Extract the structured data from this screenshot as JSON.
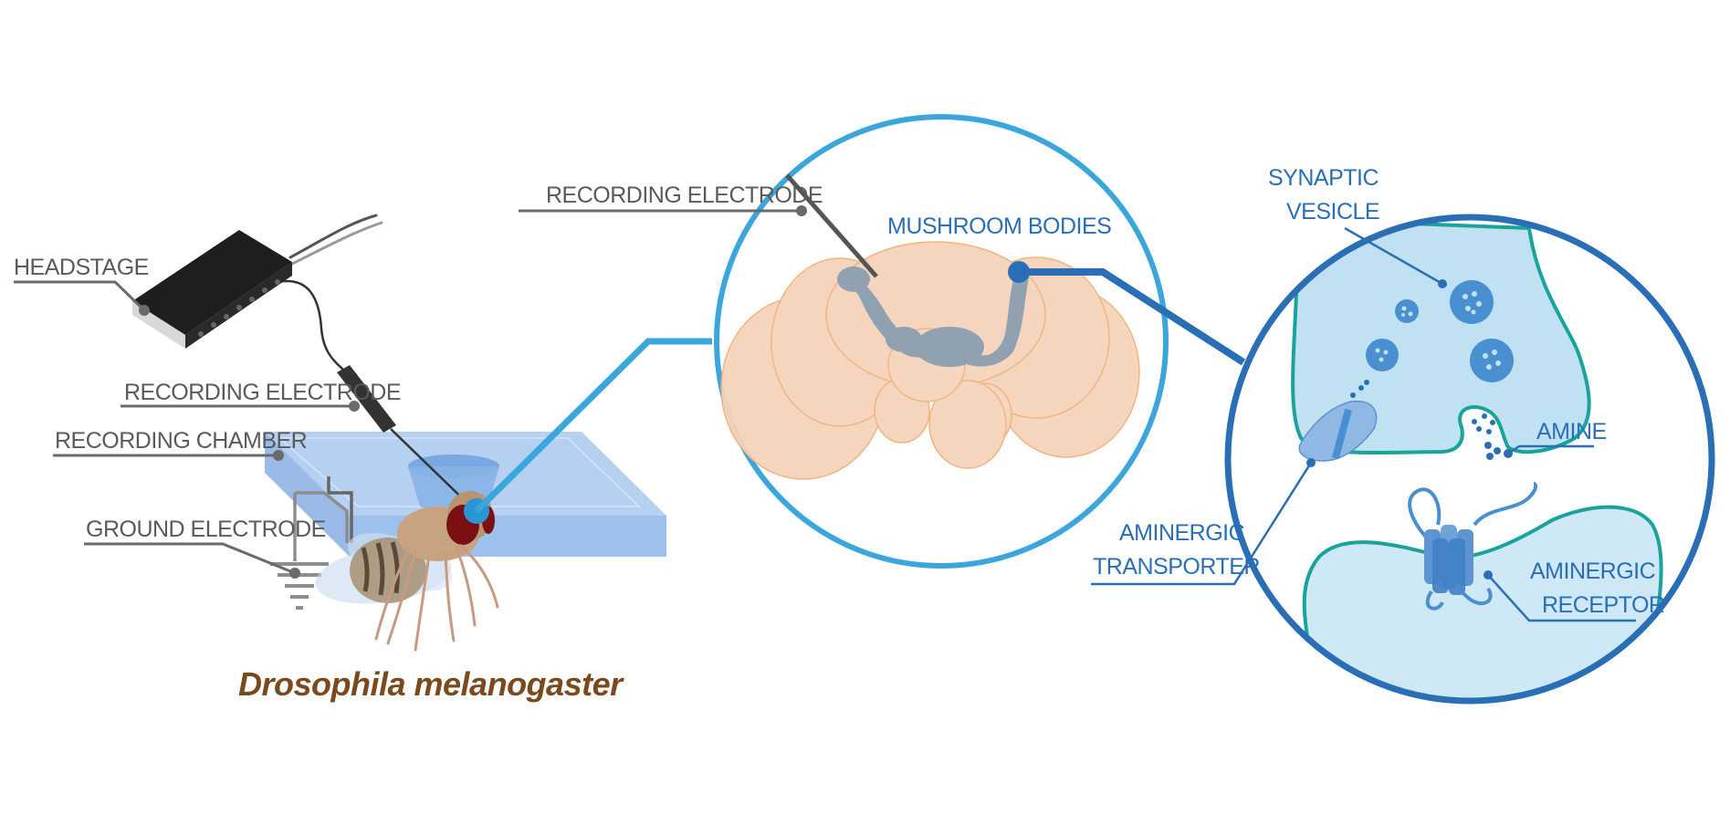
{
  "labels": {
    "headstage": "HEADSTAGE",
    "recording_electrode_left": "RECORDING ELECTRODE",
    "recording_chamber": "RECORDING CHAMBER",
    "ground_electrode": "GROUND ELECTRODE",
    "species": "Drosophila melanogaster",
    "recording_electrode_brain": "RECORDING ELECTRODE",
    "mushroom_bodies": "MUSHROOM BODIES",
    "synaptic_vesicle_line1": "SYNAPTIC",
    "synaptic_vesicle_line2": "VESICLE",
    "amine": "AMINE",
    "aminergic_transporter_line1": "AMINERGIC",
    "aminergic_transporter_line2": "TRANSPORTER",
    "aminergic_receptor_line1": "AMINERGIC",
    "aminergic_receptor_line2": "RECEPTOR"
  },
  "colors": {
    "gray_label": "#5a5a5a",
    "blue_label": "#2a6fb5",
    "species": "#7a4a1e",
    "light_blue": "#3aa6dc",
    "dark_blue": "#2a6fb5",
    "brain": "#f6d3bb",
    "mushroom_body": "#7f9ab0",
    "synapse_fill": "#bfe1f1",
    "synapse_edge": "#1aa39a"
  }
}
